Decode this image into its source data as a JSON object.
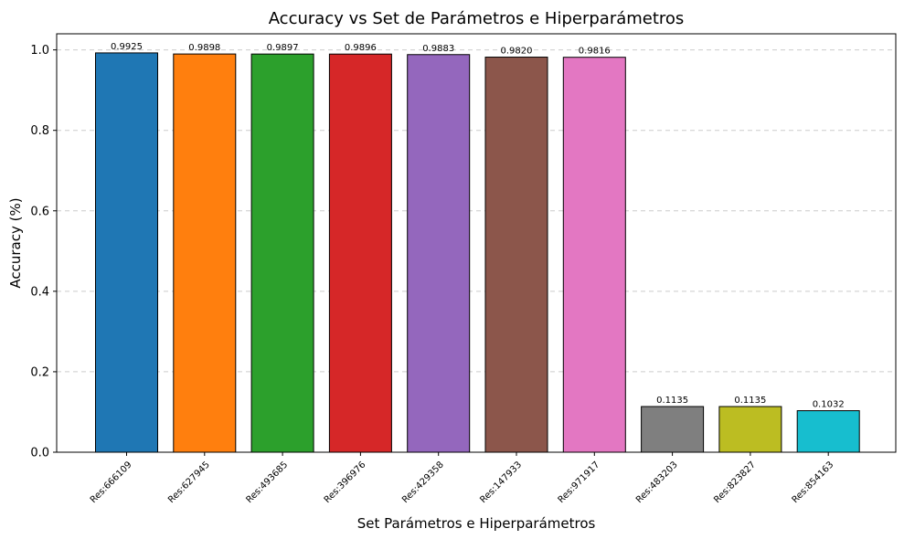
{
  "chart_data": {
    "type": "bar",
    "title": "Accuracy vs Set de Parámetros e Hiperparámetros",
    "xlabel": "Set Parámetros e Hiperparámetros",
    "ylabel": "Accuracy (%)",
    "ylim": [
      0,
      1.04
    ],
    "yticks": [
      "0.0",
      "0.2",
      "0.4",
      "0.6",
      "0.8",
      "1.0"
    ],
    "grid": "y-dashed",
    "categories": [
      "Res:666109",
      "Res:627945",
      "Res:493685",
      "Res:396976",
      "Res:429358",
      "Res:147933",
      "Res:971917",
      "Res:483203",
      "Res:823827",
      "Res:854163"
    ],
    "values": [
      0.9925,
      0.9898,
      0.9897,
      0.9896,
      0.9883,
      0.982,
      0.9816,
      0.1135,
      0.1135,
      0.1032
    ],
    "value_labels": [
      "0.9925",
      "0.9898",
      "0.9897",
      "0.9896",
      "0.9883",
      "0.9820",
      "0.9816",
      "0.1135",
      "0.1135",
      "0.1032"
    ],
    "colors": [
      "#1f77b4",
      "#ff7f0e",
      "#2ca02c",
      "#d62728",
      "#9467bd",
      "#8c564b",
      "#e377c2",
      "#7f7f7f",
      "#bcbd22",
      "#17becf"
    ]
  }
}
